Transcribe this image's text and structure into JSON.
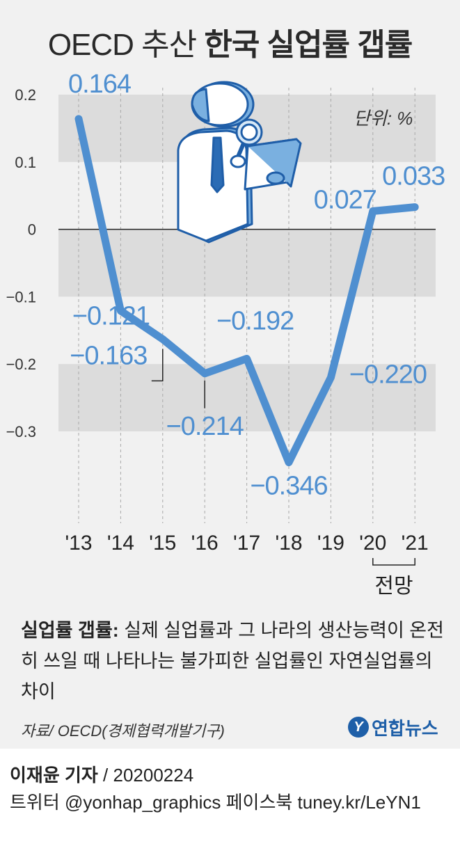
{
  "header": {
    "title_light": "OECD 추산",
    "title_bold": "한국 실업률 갭률"
  },
  "unit_label": "단위: %",
  "colors": {
    "line": "#4f8fd0",
    "band": "#dcdcdc",
    "panel": "#f1f1f1"
  },
  "chart_data": {
    "type": "line",
    "categories": [
      "'13",
      "'14",
      "'15",
      "'16",
      "'17",
      "'18",
      "'19",
      "'20",
      "'21"
    ],
    "series": [
      {
        "values": [
          0.164,
          -0.121,
          -0.163,
          -0.214,
          -0.192,
          -0.346,
          -0.22,
          0.027,
          0.033
        ],
        "labels": [
          "0.164",
          "−0.121",
          "−0.163",
          "−0.214",
          "−0.192",
          "−0.346",
          "−0.220",
          "0.027",
          "0.033"
        ]
      }
    ],
    "y_ticks": [
      {
        "value": 0.2,
        "label": "0.2"
      },
      {
        "value": 0.1,
        "label": "0.1"
      },
      {
        "value": 0,
        "label": "0"
      },
      {
        "value": -0.1,
        "label": "−0.1"
      },
      {
        "value": -0.2,
        "label": "−0.2"
      },
      {
        "value": -0.3,
        "label": "−0.3"
      }
    ],
    "ylim": [
      -0.3,
      0.2
    ],
    "forecast_label": "전망",
    "forecast_categories": [
      "'20",
      "'21"
    ]
  },
  "note": {
    "label": "실업률 갭률:",
    "text": " 실제 실업률과 그 나라의 생산능력이 온전히 쓰일 때 나타나는 불가피한 실업률인 자연실업률의 차이"
  },
  "source": "자료/ OECD(경제협력개발기구)",
  "logo": {
    "text": "연합뉴스",
    "mark_glyph": "Y"
  },
  "credit": {
    "name": "이재윤 기자",
    "rest": " / 20200224"
  },
  "social": "트위터 @yonhap_graphics  페이스북 tuney.kr/LeYN1"
}
